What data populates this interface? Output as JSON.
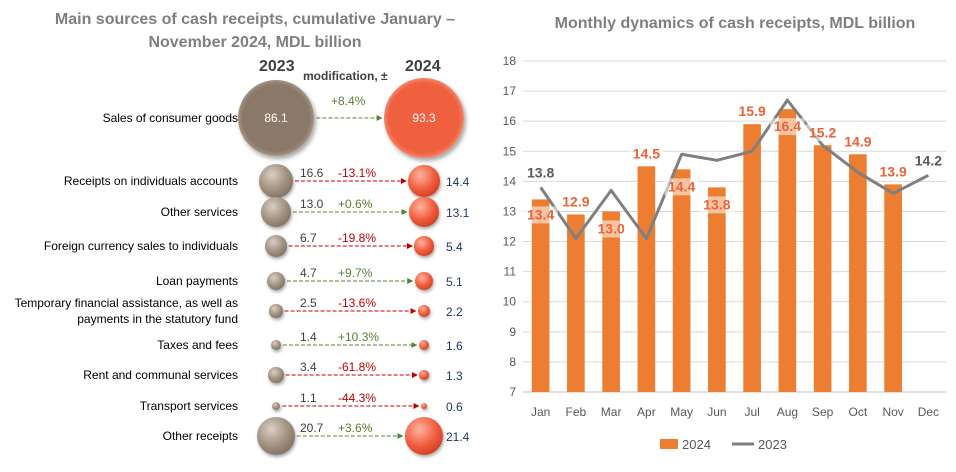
{
  "left": {
    "title": "Main sources of cash receipts, cumulative January – November 2024,  MDL billion",
    "col_2023": "2023",
    "col_2024": "2024",
    "mod_header": "modification, ±",
    "rows": [
      {
        "label": "Sales of consumer goods",
        "v2023": "86.1",
        "v2024": "93.3",
        "change": "+8.4%",
        "direction": "up"
      },
      {
        "label": "Receipts on individuals accounts",
        "v2023": "16.6",
        "v2024": "14.4",
        "change": "-13.1%",
        "direction": "down"
      },
      {
        "label": "Other services",
        "v2023": "13.0",
        "v2024": "13.1",
        "change": "+0.6%",
        "direction": "up"
      },
      {
        "label": "Foreign currency sales to individuals",
        "v2023": "6.7",
        "v2024": "5.4",
        "change": "-19.8%",
        "direction": "down"
      },
      {
        "label": "Loan payments",
        "v2023": "4.7",
        "v2024": "5.1",
        "change": "+9.7%",
        "direction": "up"
      },
      {
        "label": "Temporary financial assistance, as well as payments in the statutory fund",
        "v2023": "2.5",
        "v2024": "2.2",
        "change": "-13.6%",
        "direction": "down"
      },
      {
        "label": "Taxes and fees",
        "v2023": "1.4",
        "v2024": "1.6",
        "change": "+10.3%",
        "direction": "up"
      },
      {
        "label": "Rent and communal services",
        "v2023": "3.4",
        "v2024": "1.3",
        "change": "-61.8%",
        "direction": "down"
      },
      {
        "label": "Transport services",
        "v2023": "1.1",
        "v2024": "0.6",
        "change": "-44.3%",
        "direction": "down"
      },
      {
        "label": "Other receipts",
        "v2023": "20.7",
        "v2024": "21.4",
        "change": "+3.6%",
        "direction": "up"
      }
    ],
    "colors": {
      "bubble_2023": "#8a7968",
      "bubble_2024": "#f0603f",
      "positive": "#548235",
      "negative": "#c00000"
    }
  },
  "chart_data": {
    "type": "bar",
    "title": "Monthly dynamics of cash receipts, MDL billion",
    "categories": [
      "Jan",
      "Feb",
      "Mar",
      "Apr",
      "May",
      "Jun",
      "Jul",
      "Aug",
      "Sep",
      "Oct",
      "Nov",
      "Dec"
    ],
    "series": [
      {
        "name": "2024",
        "type": "bar",
        "color": "#ed7d31",
        "values": [
          13.4,
          12.9,
          13.0,
          14.5,
          14.4,
          13.8,
          15.9,
          16.4,
          15.2,
          14.9,
          13.9,
          null
        ],
        "labels": [
          "13.4",
          "12.9",
          "13.0",
          "14.5",
          "14.4",
          "13.8",
          "15.9",
          "16.4",
          "15.2",
          "14.9",
          "13.9",
          ""
        ]
      },
      {
        "name": "2023",
        "type": "line",
        "color": "#7f7f7f",
        "values": [
          13.8,
          12.1,
          13.7,
          12.1,
          14.9,
          14.7,
          15.0,
          16.7,
          15.2,
          14.3,
          13.6,
          14.2
        ],
        "labels": [
          "13.8",
          "",
          "",
          "",
          "",
          "",
          "",
          "",
          "",
          "",
          "",
          "14.2"
        ]
      }
    ],
    "yticks": [
      "7",
      "8",
      "9",
      "10",
      "11",
      "12",
      "13",
      "14",
      "15",
      "16",
      "17",
      "18"
    ],
    "ylim": [
      7,
      18
    ],
    "grid": true,
    "legend_position": "bottom"
  }
}
